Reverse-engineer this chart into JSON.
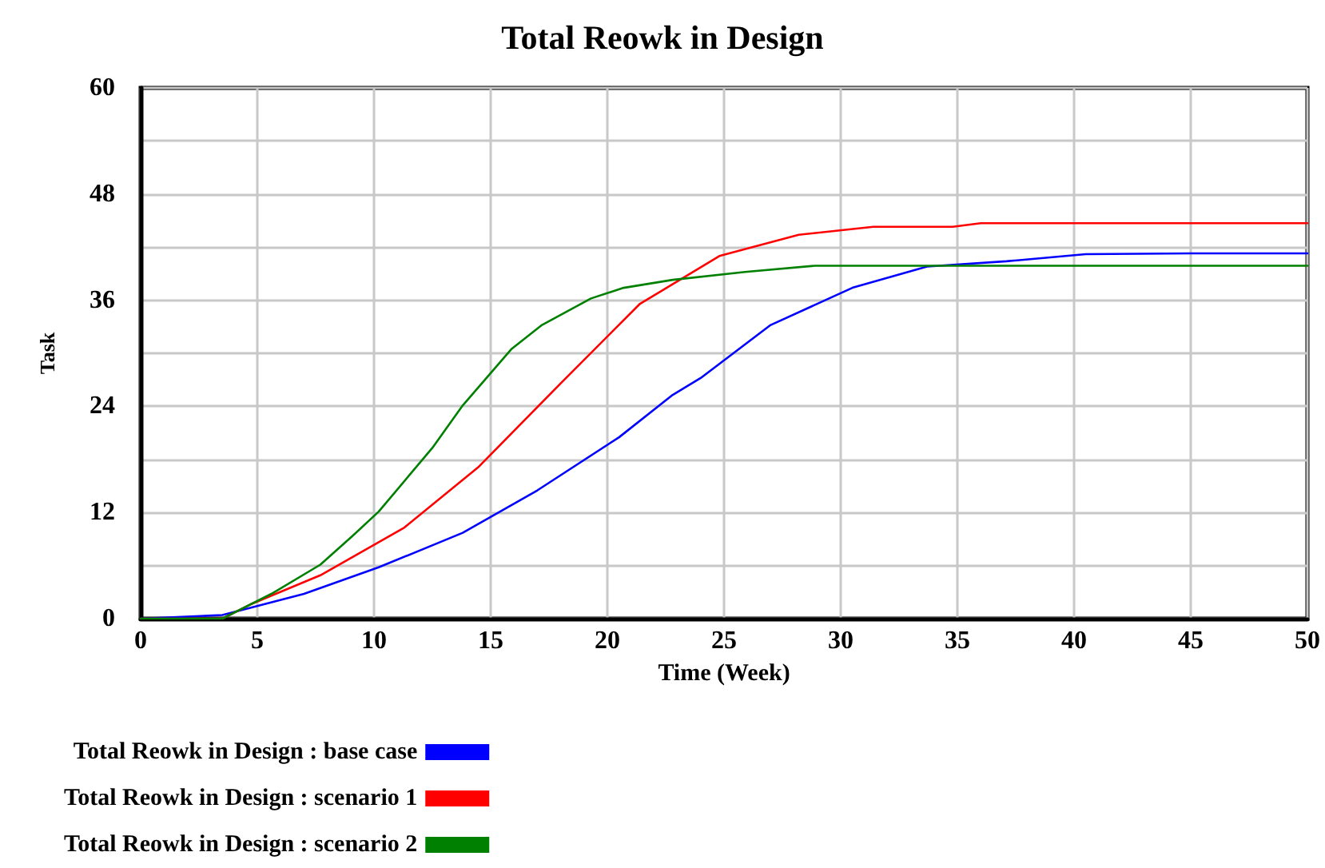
{
  "chart_data": {
    "type": "line",
    "title": "Total Reowk in Design",
    "xlabel": "Time (Week)",
    "ylabel": "Task",
    "xlim": [
      0,
      50
    ],
    "xticks": [
      0,
      5,
      10,
      15,
      20,
      25,
      30,
      35,
      40,
      45,
      50
    ],
    "ylim": [
      0,
      60
    ],
    "yticks": [
      0,
      {
        "value": 6,
        "label": null
      },
      12,
      {
        "value": 18,
        "label": null
      },
      24,
      {
        "value": 30,
        "label": null
      },
      36,
      {
        "value": 42,
        "label": null
      },
      48,
      {
        "value": 54,
        "label": null
      },
      60
    ],
    "grid": true,
    "legend": "bottom",
    "line_style": "solid",
    "series": [
      {
        "name": "Total Reowk in Design : base case",
        "color": "#0000ff",
        "x": [
          0,
          3.5,
          7,
          10.2,
          13.8,
          17,
          20.5,
          22.8,
          24,
          27,
          30.5,
          33.7,
          37.1,
          40.5,
          45,
          50
        ],
        "values": [
          0,
          0.4,
          2.8,
          5.8,
          9.7,
          14.5,
          20.5,
          25.3,
          27.2,
          33.2,
          37.4,
          39.8,
          40.4,
          41.2,
          41.3,
          41.3
        ]
      },
      {
        "name": "Total Reowk in Design : scenario 1",
        "color": "#ff0000",
        "x": [
          0,
          3.5,
          4.7,
          7.7,
          11.3,
          14.5,
          18,
          21.4,
          24.8,
          28.2,
          31.4,
          34.8,
          36,
          40,
          45,
          50
        ],
        "values": [
          0,
          0,
          1.6,
          4.9,
          10.3,
          17.2,
          26.6,
          35.6,
          41,
          43.4,
          44.3,
          44.3,
          44.7,
          44.7,
          44.7,
          44.7
        ]
      },
      {
        "name": "Total Reowk in Design : scenario 2",
        "color": "#008000",
        "x": [
          0,
          3.5,
          5.6,
          7.7,
          9.1,
          10.2,
          12.5,
          13.8,
          15.9,
          17.2,
          19.3,
          20.7,
          22.8,
          25.9,
          28.9,
          35,
          40,
          45,
          50
        ],
        "values": [
          0,
          0,
          2.8,
          6.1,
          9.4,
          12.1,
          19.3,
          24.1,
          30.5,
          33.2,
          36.2,
          37.4,
          38.3,
          39.2,
          39.9,
          39.9,
          39.9,
          39.9,
          39.9
        ]
      }
    ]
  }
}
